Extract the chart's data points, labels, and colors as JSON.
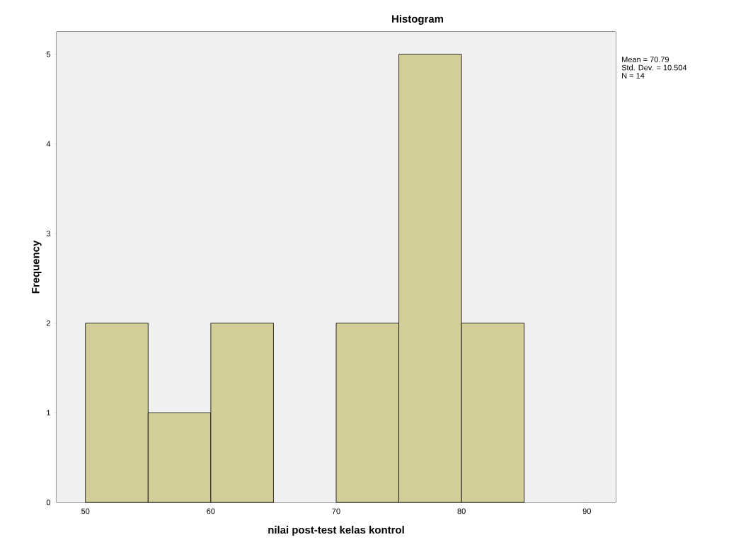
{
  "chart_data": {
    "type": "histogram",
    "title": "Histogram",
    "xlabel": "nilai post-test kelas kontrol",
    "ylabel": "Frequency",
    "bins": [
      50,
      55,
      60,
      65,
      70,
      75,
      80,
      85
    ],
    "values": [
      2,
      1,
      2,
      0,
      2,
      5,
      2
    ],
    "color": "#d3ce97",
    "xlim": [
      47.7,
      92.3
    ],
    "ylim": [
      0,
      5.25
    ],
    "xticks": [
      50,
      60,
      70,
      80,
      90
    ],
    "yticks": [
      0,
      1,
      2,
      3,
      4,
      5
    ],
    "annotations": [
      "Mean = 70.79",
      "Std. Dev. = 10.504",
      "N = 14"
    ]
  }
}
